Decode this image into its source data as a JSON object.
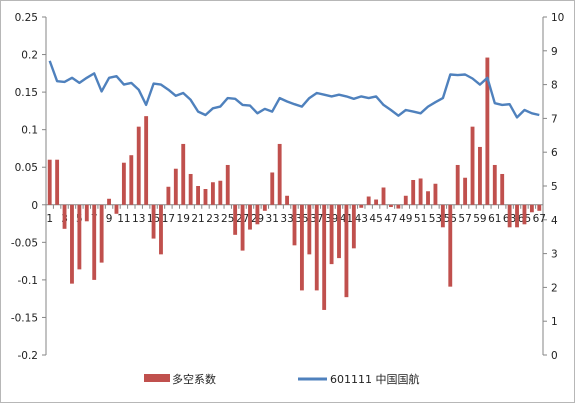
{
  "chart_data": {
    "type": "bar+line",
    "colors": {
      "bar": "#c0504d",
      "line": "#4f81bd"
    },
    "y_left": {
      "min": -0.2,
      "max": 0.25,
      "step": 0.05,
      "ticks": [
        "-0.2",
        "-0.15",
        "-0.1",
        "-0.05",
        "0",
        "0.05",
        "0.1",
        "0.15",
        "0.2",
        "0.25"
      ]
    },
    "y_right": {
      "min": 0,
      "max": 10,
      "step": 1,
      "ticks": [
        "0",
        "1",
        "2",
        "3",
        "4",
        "5",
        "6",
        "7",
        "8",
        "9",
        "10"
      ]
    },
    "x_tick_labels": [
      "1",
      "3",
      "5",
      "7",
      "9",
      "11",
      "13",
      "15",
      "17",
      "19",
      "21",
      "23",
      "25",
      "27",
      "29",
      "31",
      "33",
      "35",
      "37",
      "39",
      "41",
      "43",
      "45",
      "47",
      "49",
      "51",
      "53",
      "55",
      "57",
      "59",
      "61",
      "63",
      "65",
      "67"
    ],
    "series": [
      {
        "name": "多空系数",
        "type": "bar",
        "axis": "left",
        "values": [
          0.06,
          0.06,
          -0.032,
          -0.105,
          -0.086,
          -0.022,
          -0.1,
          -0.077,
          0.008,
          -0.012,
          0.056,
          0.066,
          0.104,
          0.118,
          -0.045,
          -0.066,
          0.024,
          0.048,
          0.081,
          0.041,
          0.025,
          0.021,
          0.03,
          0.032,
          0.053,
          -0.04,
          -0.061,
          -0.033,
          -0.026,
          -0.008,
          0.043,
          0.081,
          0.012,
          -0.054,
          -0.114,
          -0.066,
          -0.114,
          -0.14,
          -0.079,
          -0.071,
          -0.123,
          -0.058,
          -0.004,
          0.011,
          0.007,
          0.023,
          -0.003,
          -0.005,
          0.012,
          0.033,
          0.035,
          0.018,
          0.028,
          -0.03,
          -0.109,
          0.053,
          0.036,
          0.104,
          0.077,
          0.196,
          0.053,
          0.041,
          -0.03,
          -0.03,
          -0.026,
          -0.01,
          -0.008
        ]
      },
      {
        "name": "601111 中国国航",
        "type": "line",
        "axis": "right",
        "values": [
          8.7,
          8.1,
          8.08,
          8.2,
          8.05,
          8.2,
          8.33,
          7.8,
          8.2,
          8.25,
          8.0,
          8.05,
          7.85,
          7.4,
          8.03,
          8.0,
          7.85,
          7.67,
          7.75,
          7.55,
          7.2,
          7.1,
          7.3,
          7.35,
          7.6,
          7.58,
          7.4,
          7.38,
          7.15,
          7.28,
          7.2,
          7.6,
          7.5,
          7.42,
          7.35,
          7.6,
          7.75,
          7.7,
          7.65,
          7.7,
          7.65,
          7.58,
          7.65,
          7.6,
          7.65,
          7.4,
          7.25,
          7.08,
          7.25,
          7.2,
          7.15,
          7.35,
          7.48,
          7.6,
          8.3,
          8.28,
          8.3,
          8.18,
          8.0,
          8.2,
          7.45,
          7.4,
          7.42,
          7.03,
          7.25,
          7.15,
          7.1
        ]
      }
    ]
  }
}
